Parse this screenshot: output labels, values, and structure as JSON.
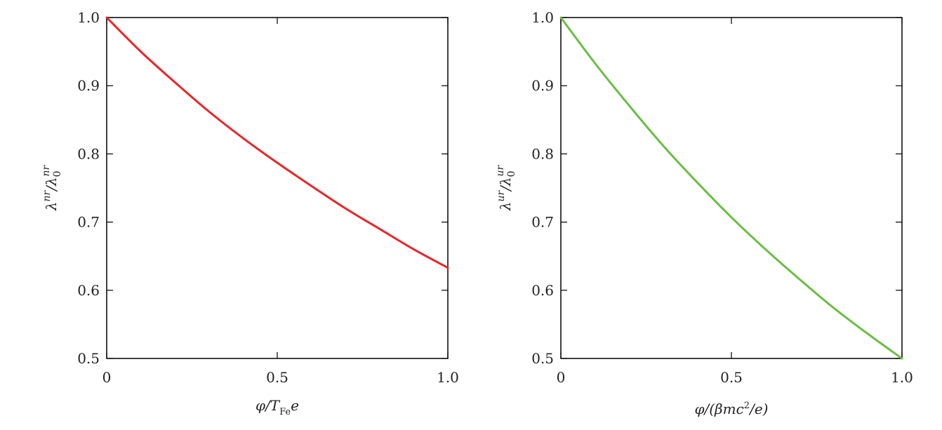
{
  "chart_data": [
    {
      "type": "line",
      "xlabel": "φ/T_Fe e",
      "ylabel": "λ^nr/λ_0^nr",
      "xlim": [
        0,
        1.0
      ],
      "ylim": [
        0.5,
        1.0
      ],
      "x_ticks": [
        "0",
        "0.5",
        "1.0"
      ],
      "y_ticks": [
        "0.5",
        "0.6",
        "0.7",
        "0.8",
        "0.9",
        "1.0"
      ],
      "grid": false,
      "series": [
        {
          "color": "#e8262a",
          "x": [
            0,
            0.1,
            0.2,
            0.3,
            0.4,
            0.5,
            0.6,
            0.7,
            0.8,
            0.9,
            1.0
          ],
          "y": [
            1.0,
            0.95,
            0.905,
            0.862,
            0.823,
            0.787,
            0.753,
            0.72,
            0.69,
            0.66,
            0.633
          ]
        }
      ]
    },
    {
      "type": "line",
      "xlabel": "φ/(βmc²/e)",
      "ylabel": "λ^ur/λ_0^ur",
      "xlim": [
        0,
        1.0
      ],
      "ylim": [
        0.5,
        1.0
      ],
      "x_ticks": [
        "0",
        "0.5",
        "1.0"
      ],
      "y_ticks": [
        "0.5",
        "0.6",
        "0.7",
        "0.8",
        "0.9",
        "1.0"
      ],
      "grid": false,
      "series": [
        {
          "color": "#6cbd45",
          "x": [
            0,
            0.1,
            0.2,
            0.3,
            0.4,
            0.5,
            0.6,
            0.7,
            0.8,
            0.9,
            1.0
          ],
          "y": [
            1.0,
            0.933,
            0.871,
            0.812,
            0.758,
            0.707,
            0.66,
            0.616,
            0.574,
            0.536,
            0.5
          ]
        }
      ]
    }
  ],
  "plots": [
    {
      "xlabel_main": "φ/T",
      "xlabel_sub": "Fe",
      "xlabel_tail": "e",
      "ylabel_main": "λ",
      "ylabel_sup1": "nr",
      "ylabel_mid": "/λ",
      "ylabel_sub2": "0",
      "ylabel_sup2": "nr"
    },
    {
      "xlabel_main": "φ/(βmc",
      "xlabel_sup": "2",
      "xlabel_tail": "/e)",
      "ylabel_main": "λ",
      "ylabel_sup1": "ur",
      "ylabel_mid": "/λ",
      "ylabel_sub2": "0",
      "ylabel_sup2": "ur"
    }
  ]
}
